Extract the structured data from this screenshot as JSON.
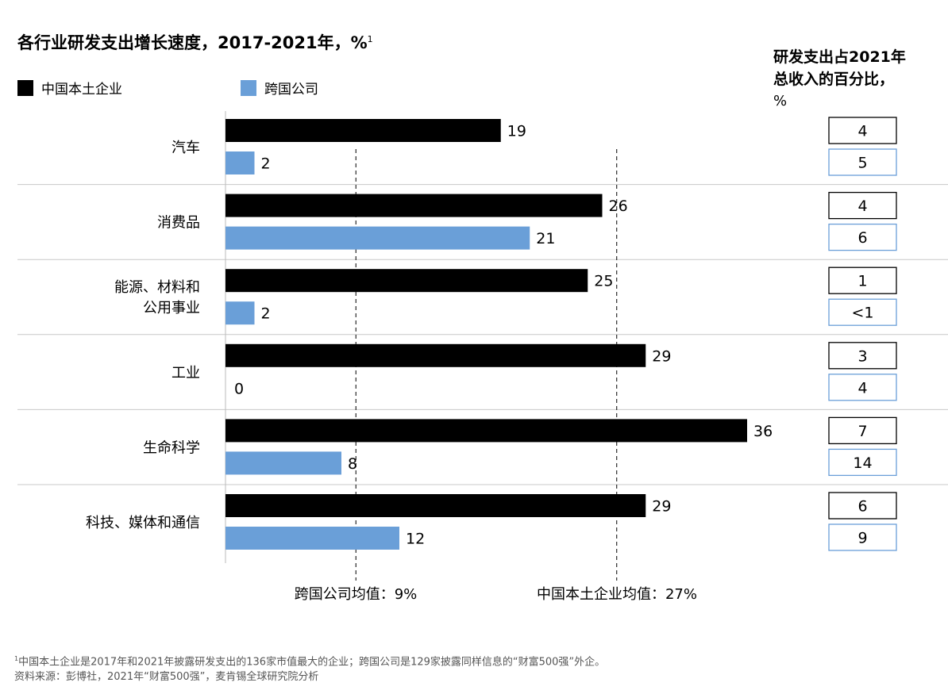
{
  "header": {
    "title": "各行业研发支出增长速度，2017-2021年，%",
    "title_sup": "1",
    "right_title_line1": "研发支出占2021年",
    "right_title_line2": "总收入的百分比，",
    "right_title_unit": "%"
  },
  "colors": {
    "domestic": "#000000",
    "multinational": "#6a9fd8",
    "box_domestic_border": "#000000",
    "box_multinational_border": "#6a9fd8",
    "divider": "#c8c8c8"
  },
  "chart_data": {
    "type": "bar",
    "orientation": "horizontal",
    "categories": [
      [
        "汽车"
      ],
      [
        "消费品"
      ],
      [
        "能源、材料和",
        "公用事业"
      ],
      [
        "工业"
      ],
      [
        "生命科学"
      ],
      [
        "科技、媒体和通信"
      ]
    ],
    "series": [
      {
        "name": "中国本土企业",
        "key": "domestic",
        "values": [
          19,
          26,
          25,
          29,
          36,
          29
        ]
      },
      {
        "name": "跨国公司",
        "key": "multinational",
        "values": [
          2,
          21,
          2,
          0,
          8,
          12
        ]
      }
    ],
    "reference_lines": [
      {
        "label": "跨国公司均值：9%",
        "value": 9
      },
      {
        "label": "中国本土企业均值：27%",
        "value": 27
      }
    ],
    "rd_share_2021": {
      "domestic": [
        "4",
        "4",
        "1",
        "3",
        "7",
        "6"
      ],
      "multinational": [
        "5",
        "6",
        "<1",
        "4",
        "14",
        "9"
      ]
    },
    "xlim": [
      0,
      36
    ]
  },
  "footnote": {
    "sup": "1",
    "line1": "中国本土企业是2017年和2021年披露研发支出的136家市值最大的企业；跨国公司是129家披露同样信息的“财富500强”外企。",
    "line2": "资料来源：彭博社，2021年“财富500强”，麦肯锡全球研究院分析"
  }
}
